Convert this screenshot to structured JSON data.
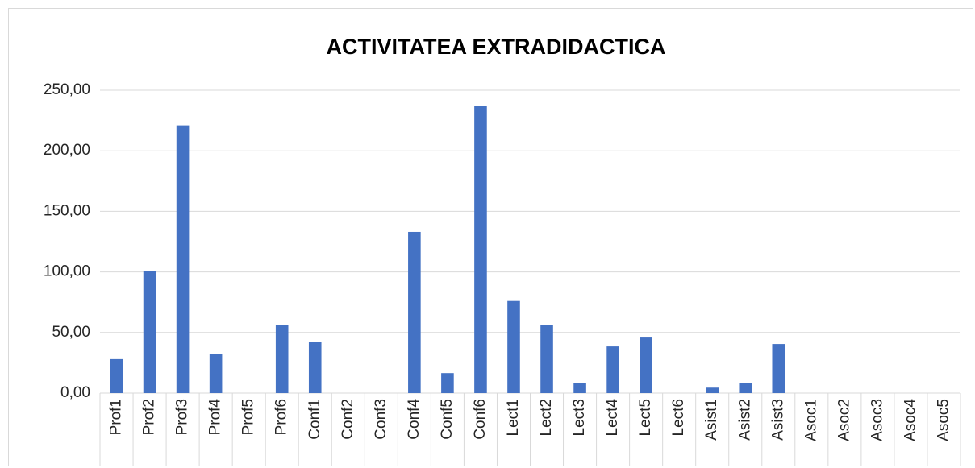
{
  "chart_data": {
    "type": "bar",
    "title": "ACTIVITATEA EXTRADIDACTICA",
    "categories": [
      "Prof1",
      "Prof2",
      "Prof3",
      "Prof4",
      "Prof5",
      "Prof6",
      "Conf1",
      "Conf2",
      "Conf3",
      "Conf4",
      "Conf5",
      "Conf6",
      "Lect1",
      "Lect2",
      "Lect3",
      "Lect4",
      "Lect5",
      "Lect6",
      "Asist1",
      "Asist2",
      "Asist3",
      "Asoc1",
      "Asoc2",
      "Asoc3",
      "Asoc4",
      "Asoc5"
    ],
    "values": [
      28,
      101,
      221,
      32,
      0,
      56,
      42,
      0,
      0,
      133,
      16.5,
      237,
      76,
      56,
      8,
      38.5,
      46.5,
      0,
      4.5,
      8,
      40.5,
      0,
      0,
      0,
      0,
      0
    ],
    "color": "#4472c4",
    "ylim": [
      0,
      250
    ],
    "yticks": [
      {
        "value": 0,
        "label": "0,00"
      },
      {
        "value": 50,
        "label": "50,00"
      },
      {
        "value": 100,
        "label": "100,00"
      },
      {
        "value": 150,
        "label": "150,00"
      },
      {
        "value": 200,
        "label": "200,00"
      },
      {
        "value": 250,
        "label": "250,00"
      }
    ],
    "grid": true
  }
}
